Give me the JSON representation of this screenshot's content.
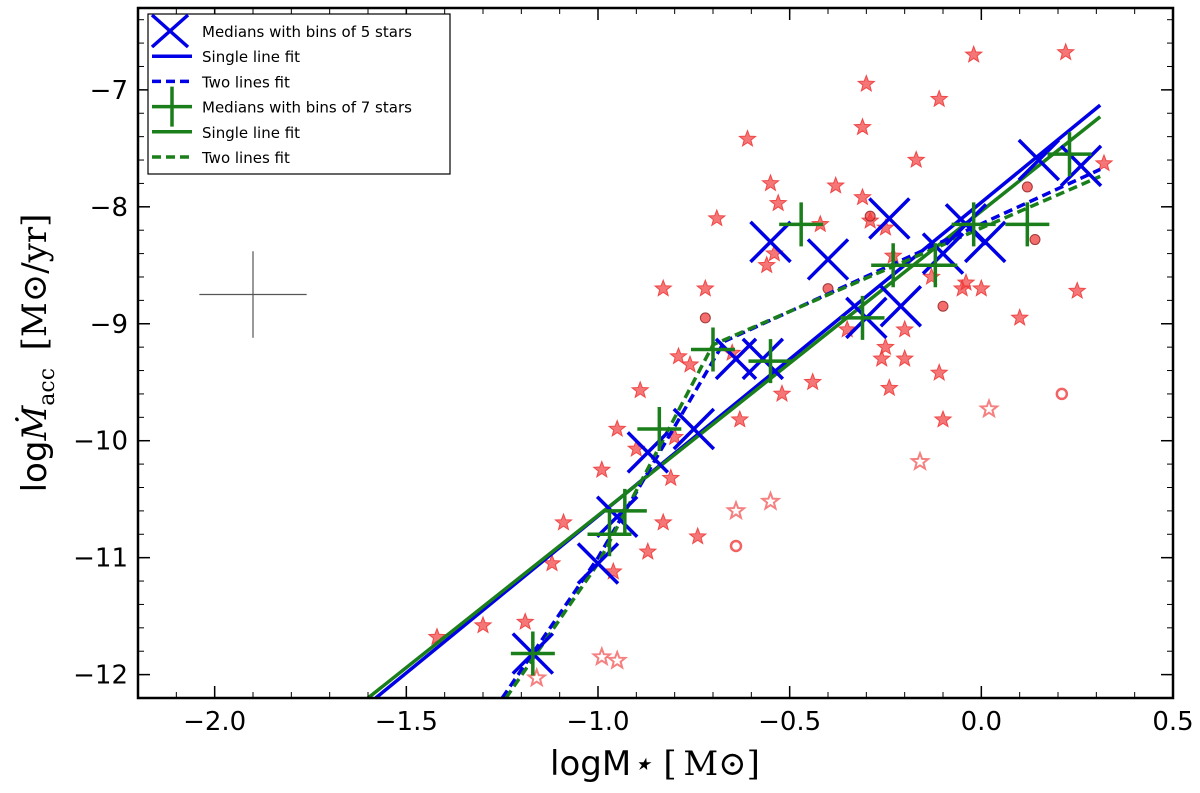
{
  "chart_data": {
    "type": "scatter",
    "title": "",
    "xlabel": "logM⋆ [M⊙]",
    "ylabel": "logṀacc [M⊙/yr]",
    "xlim": [
      -2.2,
      0.5
    ],
    "ylim": [
      -12.2,
      -6.3
    ],
    "x_ticks": [
      -2.0,
      -1.5,
      -1.0,
      -0.5,
      0.0,
      0.5
    ],
    "x_tick_labels": [
      "−2.0",
      "−1.5",
      "−1.0",
      "−0.5",
      "0.0",
      "0.5"
    ],
    "y_ticks": [
      -12,
      -11,
      -10,
      -9,
      -8,
      -7
    ],
    "y_tick_labels": [
      "−12",
      "−11",
      "−10",
      "−9",
      "−8",
      "−7"
    ],
    "grid": false,
    "legend_position": "top-left",
    "legend": [
      {
        "label": "Medians with bins of 5 stars",
        "marker": "x",
        "color": "#0000e6"
      },
      {
        "label": "Single line fit",
        "line": "solid",
        "color": "#0000e6"
      },
      {
        "label": "Two lines fit",
        "line": "dashed",
        "color": "#0000e6"
      },
      {
        "label": "Medians with bins of 7 stars",
        "marker": "plus",
        "color": "#1a7f1a"
      },
      {
        "label": "Single line fit",
        "line": "solid",
        "color": "#1a7f1a"
      },
      {
        "label": "Two lines fit",
        "line": "dashed",
        "color": "#1a7f1a"
      }
    ],
    "colors": {
      "blue": "#0000e6",
      "green": "#1a7f1a",
      "red": "#f03c3c",
      "gray": "#555555"
    },
    "error_bar": {
      "x": -1.9,
      "y": -8.75,
      "xerr": 0.14,
      "yerr": 0.37
    },
    "series": [
      {
        "name": "Medians with bins of 5 stars",
        "marker": "x",
        "points": [
          [
            -1.17,
            -11.82
          ],
          [
            -1.0,
            -11.05
          ],
          [
            -0.95,
            -10.65
          ],
          [
            -0.87,
            -10.1
          ],
          [
            -0.75,
            -9.9
          ],
          [
            -0.64,
            -9.3
          ],
          [
            -0.57,
            -9.3
          ],
          [
            -0.55,
            -8.3
          ],
          [
            -0.4,
            -8.45
          ],
          [
            -0.3,
            -8.95
          ],
          [
            -0.24,
            -8.1
          ],
          [
            -0.21,
            -8.85
          ],
          [
            -0.1,
            -8.4
          ],
          [
            -0.04,
            -8.15
          ],
          [
            0.01,
            -8.3
          ],
          [
            0.15,
            -7.6
          ],
          [
            0.26,
            -7.65
          ]
        ]
      },
      {
        "name": "Medians with bins of 7 stars",
        "marker": "plus",
        "points": [
          [
            -1.17,
            -11.82
          ],
          [
            -0.97,
            -10.8
          ],
          [
            -0.93,
            -10.6
          ],
          [
            -0.84,
            -9.9
          ],
          [
            -0.7,
            -9.22
          ],
          [
            -0.55,
            -9.32
          ],
          [
            -0.47,
            -8.15
          ],
          [
            -0.31,
            -8.95
          ],
          [
            -0.23,
            -8.5
          ],
          [
            -0.12,
            -8.5
          ],
          [
            -0.02,
            -8.15
          ],
          [
            0.12,
            -8.15
          ],
          [
            0.23,
            -7.55
          ]
        ]
      },
      {
        "name": "Single line fit (5 stars)",
        "line": "solid",
        "color": "blue",
        "points": [
          [
            -1.58,
            -12.2
          ],
          [
            0.31,
            -7.13
          ]
        ]
      },
      {
        "name": "Single line fit (7 stars)",
        "line": "solid",
        "color": "green",
        "points": [
          [
            -1.6,
            -12.2
          ],
          [
            0.31,
            -7.23
          ]
        ]
      },
      {
        "name": "Two lines fit (5 stars)",
        "line": "dashed",
        "color": "blue",
        "points": [
          [
            -1.25,
            -12.2
          ],
          [
            -1.0,
            -11.0
          ],
          [
            -0.67,
            -9.15
          ],
          [
            0.31,
            -7.68
          ]
        ]
      },
      {
        "name": "Two lines fit (7 stars)",
        "line": "dashed",
        "color": "green",
        "points": [
          [
            -1.24,
            -12.2
          ],
          [
            -1.0,
            -11.05
          ],
          [
            -0.7,
            -9.18
          ],
          [
            0.31,
            -7.74
          ]
        ]
      },
      {
        "name": "Sample stars",
        "marker": "star",
        "points": [
          [
            -1.42,
            -11.68
          ],
          [
            -1.3,
            -11.58
          ],
          [
            -1.19,
            -11.55
          ],
          [
            -1.12,
            -11.05
          ],
          [
            -1.09,
            -10.7
          ],
          [
            -0.99,
            -10.25
          ],
          [
            -0.96,
            -11.12
          ],
          [
            -0.95,
            -9.9
          ],
          [
            -0.9,
            -10.07
          ],
          [
            -0.89,
            -9.57
          ],
          [
            -0.87,
            -10.95
          ],
          [
            -0.83,
            -10.7
          ],
          [
            -0.83,
            -8.7
          ],
          [
            -0.81,
            -10.32
          ],
          [
            -0.8,
            -9.97
          ],
          [
            -0.79,
            -9.28
          ],
          [
            -0.76,
            -9.35
          ],
          [
            -0.74,
            -10.82
          ],
          [
            -0.72,
            -8.7
          ],
          [
            -0.69,
            -8.1
          ],
          [
            -0.65,
            -9.25
          ],
          [
            -0.63,
            -9.82
          ],
          [
            -0.61,
            -7.42
          ],
          [
            -0.56,
            -8.5
          ],
          [
            -0.55,
            -7.8
          ],
          [
            -0.54,
            -8.4
          ],
          [
            -0.53,
            -7.97
          ],
          [
            -0.52,
            -9.6
          ],
          [
            -0.44,
            -9.5
          ],
          [
            -0.42,
            -8.15
          ],
          [
            -0.38,
            -7.82
          ],
          [
            -0.35,
            -9.05
          ],
          [
            -0.31,
            -7.92
          ],
          [
            -0.31,
            -7.32
          ],
          [
            -0.3,
            -6.95
          ],
          [
            -0.29,
            -8.12
          ],
          [
            -0.26,
            -9.3
          ],
          [
            -0.25,
            -8.18
          ],
          [
            -0.25,
            -9.2
          ],
          [
            -0.24,
            -9.55
          ],
          [
            -0.23,
            -8.42
          ],
          [
            -0.2,
            -9.05
          ],
          [
            -0.2,
            -9.3
          ],
          [
            -0.17,
            -7.6
          ],
          [
            -0.13,
            -8.6
          ],
          [
            -0.11,
            -7.08
          ],
          [
            -0.11,
            -9.42
          ],
          [
            -0.1,
            -9.82
          ],
          [
            -0.05,
            -8.7
          ],
          [
            -0.04,
            -8.65
          ],
          [
            -0.02,
            -6.7
          ],
          [
            0.0,
            -8.7
          ],
          [
            0.1,
            -8.95
          ],
          [
            0.22,
            -6.68
          ],
          [
            0.25,
            -8.72
          ],
          [
            0.32,
            -7.63
          ]
        ]
      },
      {
        "name": "Sample stars (open)",
        "marker": "open-star",
        "points": [
          [
            -1.16,
            -12.03
          ],
          [
            -0.99,
            -11.85
          ],
          [
            -0.95,
            -11.88
          ],
          [
            -0.64,
            -10.6
          ],
          [
            -0.55,
            -10.52
          ],
          [
            -0.16,
            -10.18
          ],
          [
            0.02,
            -9.73
          ]
        ]
      },
      {
        "name": "Sample dots",
        "marker": "dot",
        "points": [
          [
            -0.72,
            -8.95
          ],
          [
            -0.4,
            -8.7
          ],
          [
            -0.29,
            -8.08
          ],
          [
            -0.1,
            -8.85
          ],
          [
            0.12,
            -7.83
          ],
          [
            0.14,
            -8.28
          ]
        ]
      },
      {
        "name": "Sample dots (open)",
        "marker": "open-dot",
        "points": [
          [
            -0.64,
            -10.9
          ],
          [
            0.21,
            -9.6
          ]
        ]
      }
    ]
  }
}
